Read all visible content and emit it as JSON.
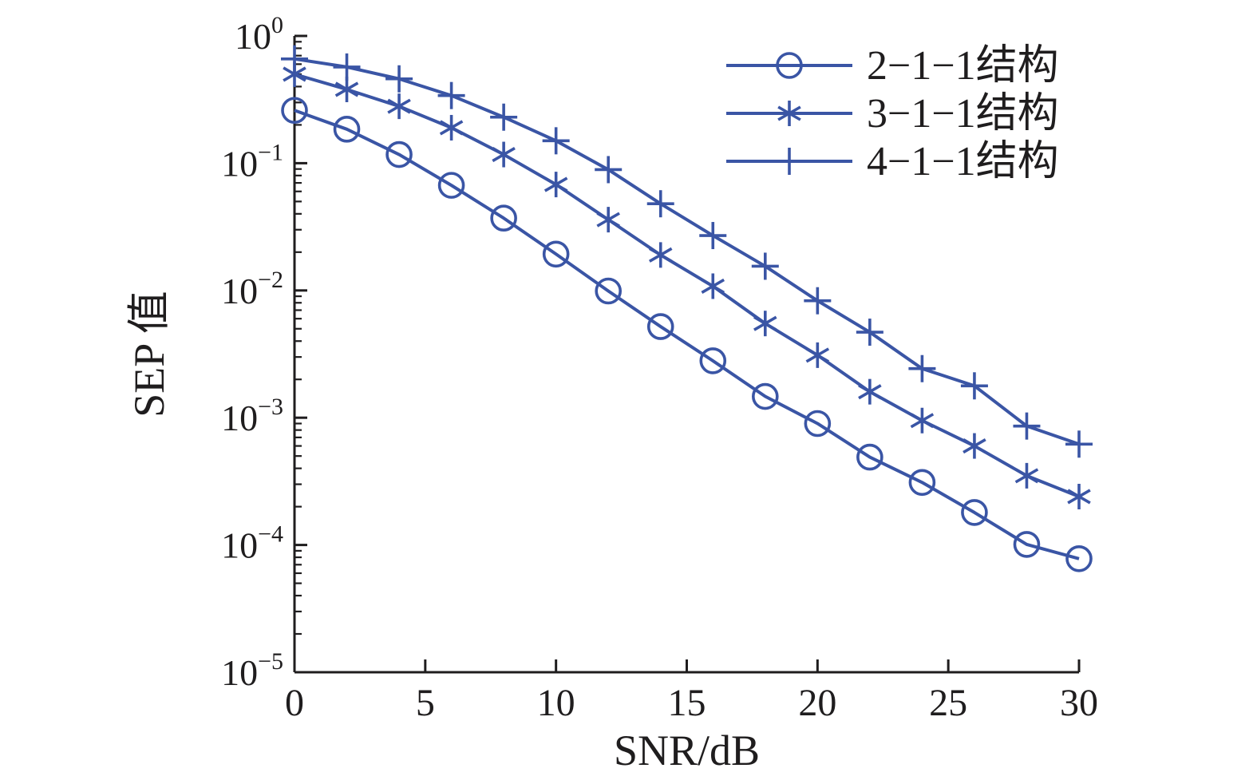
{
  "figure": {
    "background": "#ffffff",
    "series_color": "#3a55a5",
    "axis_color": "#1f1d1e",
    "text_color": "#1f1d1e"
  },
  "chart_data": {
    "type": "line",
    "title": "",
    "xlabel": "SNR/dB",
    "ylabel": "SEP 值",
    "yscale": "log",
    "grid": false,
    "legend_position": "top-right-inside",
    "xlim": [
      0,
      30
    ],
    "ylim": [
      1e-05,
      1
    ],
    "xticks": [
      0,
      5,
      10,
      15,
      20,
      25,
      30
    ],
    "ytick_exponents": [
      0,
      -1,
      -2,
      -3,
      -4,
      -5
    ],
    "x": [
      0,
      2,
      4,
      6,
      8,
      10,
      12,
      14,
      16,
      18,
      20,
      22,
      24,
      26,
      28,
      30
    ],
    "series": [
      {
        "name": "2−1−1结构",
        "marker": "circle",
        "values": [
          0.26,
          0.185,
          0.117,
          0.067,
          0.037,
          0.0193,
          0.0099,
          0.0052,
          0.0028,
          0.00147,
          0.0009,
          0.00049,
          0.00031,
          0.00018,
          0.000101,
          7.8e-05
        ]
      },
      {
        "name": "3−1−1结构",
        "marker": "asterisk",
        "values": [
          0.5,
          0.38,
          0.28,
          0.19,
          0.117,
          0.068,
          0.036,
          0.019,
          0.0108,
          0.0055,
          0.0031,
          0.0016,
          0.00095,
          0.0006,
          0.00035,
          0.00024
        ]
      },
      {
        "name": "4−1−1结构",
        "marker": "plus",
        "values": [
          0.66,
          0.57,
          0.46,
          0.34,
          0.23,
          0.15,
          0.089,
          0.048,
          0.027,
          0.0155,
          0.0083,
          0.0047,
          0.00243,
          0.00178,
          0.00086,
          0.00062
        ]
      }
    ]
  }
}
